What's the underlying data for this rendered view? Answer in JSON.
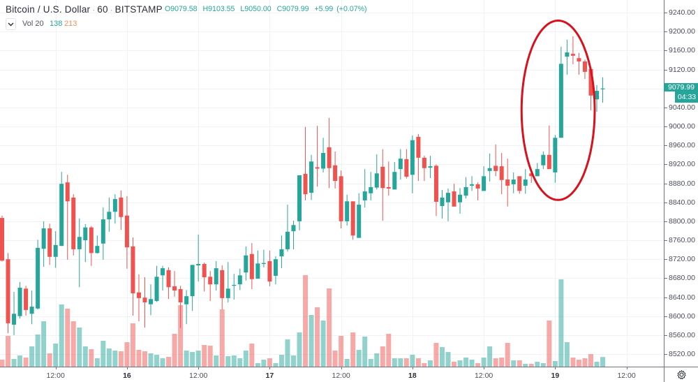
{
  "header": {
    "symbol_title": "Bitcoin / U.S. Dollar",
    "separator": "·",
    "interval": "60",
    "exchange": "BITSTAMP",
    "ohlc": {
      "open_label": "O",
      "open": "9079.58",
      "high_label": "H",
      "high": "9103.55",
      "low_label": "L",
      "low": "9050.00",
      "close_label": "C",
      "close": "9079.99",
      "change": "+5.99",
      "change_pct": "(+0.07%)"
    }
  },
  "volume_legend": {
    "collapse_icon": "chevron-down-icon",
    "label": "Vol 20",
    "volume": "138",
    "ma": "213"
  },
  "price_axis": {
    "labels": [
      "9240.00",
      "9200.00",
      "9160.00",
      "9120.00",
      "9080.00",
      "9040.00",
      "9000.00",
      "8960.00",
      "8920.00",
      "8880.00",
      "8840.00",
      "8800.00",
      "8760.00",
      "8720.00",
      "8680.00",
      "8640.00",
      "8600.00",
      "8560.00",
      "8520.00"
    ],
    "hidden_label_index": 4,
    "current_price": "9079.99",
    "countdown": "04:33"
  },
  "time_axis": {
    "labels": [
      {
        "text": "12:00",
        "index": 9,
        "bold": false
      },
      {
        "text": "16",
        "index": 21,
        "bold": true
      },
      {
        "text": "12:00",
        "index": 33,
        "bold": false
      },
      {
        "text": "17",
        "index": 45,
        "bold": true
      },
      {
        "text": "12:00",
        "index": 57,
        "bold": false
      },
      {
        "text": "18",
        "index": 69,
        "bold": true
      },
      {
        "text": "12:00",
        "index": 81,
        "bold": false
      },
      {
        "text": "19",
        "index": 93,
        "bold": true
      },
      {
        "text": "12:00",
        "index": 105,
        "bold": false
      }
    ]
  },
  "settings": {
    "icon": "gear-icon"
  },
  "colors": {
    "up": "#26a69a",
    "down": "#ef5350",
    "volume_up": "rgba(38,166,154,0.5)",
    "volume_down": "rgba(239,83,80,0.5)",
    "grid": "#f0f2f6",
    "annotation": "#d7121c",
    "volume_ma": "#f0905a"
  },
  "annotation": {
    "shape": "ellipse",
    "center_index": 93.5,
    "center_price": 9034,
    "half_width_bars": 6.15,
    "half_height_price": 189,
    "stroke_width": 3
  },
  "chart_data": {
    "type": "candlestick",
    "title": "Bitcoin / U.S. Dollar · 60 · BITSTAMP",
    "xlabel": "",
    "ylabel": "",
    "interval_minutes": 60,
    "x_start": "15 03:00",
    "x_end": "19 08:00",
    "x_ticks": [
      "12:00",
      "16",
      "12:00",
      "17",
      "12:00",
      "18",
      "12:00",
      "19",
      "12:00"
    ],
    "y_ticks": [
      9240,
      9200,
      9160,
      9120,
      9080,
      9040,
      9000,
      8960,
      8920,
      8880,
      8840,
      8800,
      8760,
      8720,
      8680,
      8640,
      8600,
      8560,
      8520
    ],
    "ylim": [
      8500,
      9260
    ],
    "grid": true,
    "legend": [
      "Vol 20: 138 / MA 213"
    ],
    "series_fields": [
      "open",
      "high",
      "low",
      "close",
      "volume"
    ],
    "candles": [
      [
        8807,
        8812,
        8715,
        8717,
        100
      ],
      [
        8720,
        8733,
        8564,
        8585,
        440
      ],
      [
        8582,
        8651,
        8560,
        8605,
        110
      ],
      [
        8600,
        8672,
        8595,
        8660,
        160
      ],
      [
        8658,
        8664,
        8601,
        8613,
        130
      ],
      [
        8605,
        8654,
        8583,
        8620,
        290
      ],
      [
        8616,
        8761,
        8614,
        8744,
        460
      ],
      [
        8742,
        8800,
        8704,
        8785,
        650
      ],
      [
        8785,
        8795,
        8708,
        8725,
        190
      ],
      [
        8725,
        8779,
        8702,
        8750,
        330
      ],
      [
        8748,
        8904,
        8748,
        8879,
        890
      ],
      [
        8882,
        8898,
        8719,
        8842,
        830
      ],
      [
        8850,
        8857,
        8728,
        8741,
        650
      ],
      [
        8741,
        8806,
        8661,
        8767,
        560
      ],
      [
        8760,
        8794,
        8714,
        8787,
        290
      ],
      [
        8787,
        8790,
        8706,
        8733,
        250
      ],
      [
        8733,
        8770,
        8732,
        8748,
        120
      ],
      [
        8753,
        8829,
        8719,
        8804,
        370
      ],
      [
        8804,
        8850,
        8778,
        8820,
        260
      ],
      [
        8820,
        8857,
        8795,
        8847,
        230
      ],
      [
        8850,
        8865,
        8782,
        8809,
        220
      ],
      [
        8812,
        8853,
        8700,
        8745,
        350
      ],
      [
        8747,
        8766,
        8601,
        8648,
        620
      ],
      [
        8650,
        8688,
        8589,
        8638,
        240
      ],
      [
        8639,
        8682,
        8576,
        8629,
        220
      ],
      [
        8625,
        8667,
        8602,
        8636,
        190
      ],
      [
        8632,
        8706,
        8630,
        8683,
        170
      ],
      [
        8686,
        8706,
        8654,
        8701,
        120
      ],
      [
        8697,
        8703,
        8636,
        8661,
        140
      ],
      [
        8663,
        8695,
        8641,
        8654,
        470
      ],
      [
        8657,
        8664,
        8575,
        8629,
        880
      ],
      [
        8625,
        8655,
        8583,
        8642,
        230
      ],
      [
        8642,
        8708,
        8611,
        8708,
        210
      ],
      [
        8707,
        8772,
        8673,
        8710,
        230
      ],
      [
        8710,
        8713,
        8652,
        8682,
        310
      ],
      [
        8683,
        8695,
        8632,
        8667,
        300
      ],
      [
        8667,
        8716,
        8654,
        8701,
        160
      ],
      [
        8697,
        8707,
        8614,
        8638,
        820
      ],
      [
        8638,
        8714,
        8629,
        8658,
        150
      ],
      [
        8664,
        8689,
        8635,
        8666,
        160
      ],
      [
        8667,
        8700,
        8655,
        8686,
        120
      ],
      [
        8692,
        8747,
        8675,
        8728,
        230
      ],
      [
        8731,
        8754,
        8657,
        8678,
        330
      ],
      [
        8679,
        8738,
        8679,
        8711,
        50
      ],
      [
        8710,
        8740,
        8703,
        8712,
        100
      ],
      [
        8716,
        8738,
        8663,
        8673,
        120
      ],
      [
        8685,
        8726,
        8667,
        8720,
        50
      ],
      [
        8726,
        8770,
        8701,
        8741,
        170
      ],
      [
        8741,
        8835,
        8736,
        8778,
        390
      ],
      [
        8779,
        8801,
        8741,
        8792,
        160
      ],
      [
        8800,
        8897,
        8781,
        8897,
        490
      ],
      [
        8900,
        8999,
        8844,
        8857,
        1310
      ],
      [
        8860,
        8940,
        8845,
        8926,
        740
      ],
      [
        8914,
        9001,
        8873,
        8911,
        850
      ],
      [
        8911,
        8976,
        8903,
        8944,
        660
      ],
      [
        8956,
        9018,
        8870,
        8912,
        1120
      ],
      [
        8918,
        8947,
        8869,
        8885,
        230
      ],
      [
        8895,
        8907,
        8785,
        8800,
        440
      ],
      [
        8800,
        8856,
        8791,
        8842,
        110
      ],
      [
        8842,
        8842,
        8761,
        8770,
        490
      ],
      [
        8765,
        8859,
        8765,
        8835,
        240
      ],
      [
        8844,
        8910,
        8829,
        8863,
        430
      ],
      [
        8859,
        8904,
        8844,
        8872,
        110
      ],
      [
        8871,
        8941,
        8867,
        8901,
        190
      ],
      [
        8915,
        8952,
        8801,
        8870,
        290
      ],
      [
        8872,
        8926,
        8854,
        8869,
        470
      ],
      [
        8867,
        8925,
        8867,
        8904,
        120
      ],
      [
        8910,
        8952,
        8888,
        8932,
        120
      ],
      [
        8931,
        8952,
        8890,
        8894,
        120
      ],
      [
        8898,
        8981,
        8859,
        8971,
        170
      ],
      [
        8978,
        8984,
        8885,
        8934,
        120
      ],
      [
        8934,
        8938,
        8885,
        8912,
        50
      ],
      [
        8913,
        8938,
        8891,
        8916,
        90
      ],
      [
        8917,
        8920,
        8811,
        8841,
        340
      ],
      [
        8832,
        8866,
        8806,
        8850,
        280
      ],
      [
        8840,
        8869,
        8800,
        8860,
        210
      ],
      [
        8863,
        8879,
        8831,
        8831,
        70
      ],
      [
        8840,
        8870,
        8816,
        8856,
        90
      ],
      [
        8854,
        8893,
        8848,
        8872,
        130
      ],
      [
        8875,
        8895,
        8864,
        8878,
        100
      ],
      [
        8878,
        8882,
        8844,
        8869,
        50
      ],
      [
        8864,
        8916,
        8864,
        8895,
        130
      ],
      [
        8906,
        8943,
        8884,
        8912,
        290
      ],
      [
        8917,
        8962,
        8895,
        8906,
        120
      ],
      [
        8916,
        8944,
        8857,
        8887,
        130
      ],
      [
        8888,
        8932,
        8831,
        8875,
        340
      ],
      [
        8878,
        8903,
        8859,
        8888,
        90
      ],
      [
        8895,
        8895,
        8858,
        8864,
        90
      ],
      [
        8875,
        8910,
        8858,
        8888,
        40
      ],
      [
        8901,
        8906,
        8881,
        8895,
        40
      ],
      [
        8895,
        8923,
        8895,
        8910,
        70
      ],
      [
        8918,
        8947,
        8910,
        8940,
        50
      ],
      [
        8940,
        9002,
        8910,
        8910,
        660
      ],
      [
        8903,
        8982,
        8881,
        8976,
        80
      ],
      [
        8976,
        9168,
        8976,
        9132,
        1250
      ],
      [
        9147,
        9183,
        9109,
        9156,
        350
      ],
      [
        9153,
        9190,
        9131,
        9149,
        130
      ],
      [
        9144,
        9155,
        9109,
        9137,
        100
      ],
      [
        9137,
        9141,
        9100,
        9115,
        120
      ],
      [
        9121,
        9124,
        9034,
        9065,
        180
      ],
      [
        9057,
        9087,
        9031,
        9075,
        70
      ],
      [
        9079.58,
        9103.55,
        9050.0,
        9079.99,
        138
      ]
    ]
  }
}
